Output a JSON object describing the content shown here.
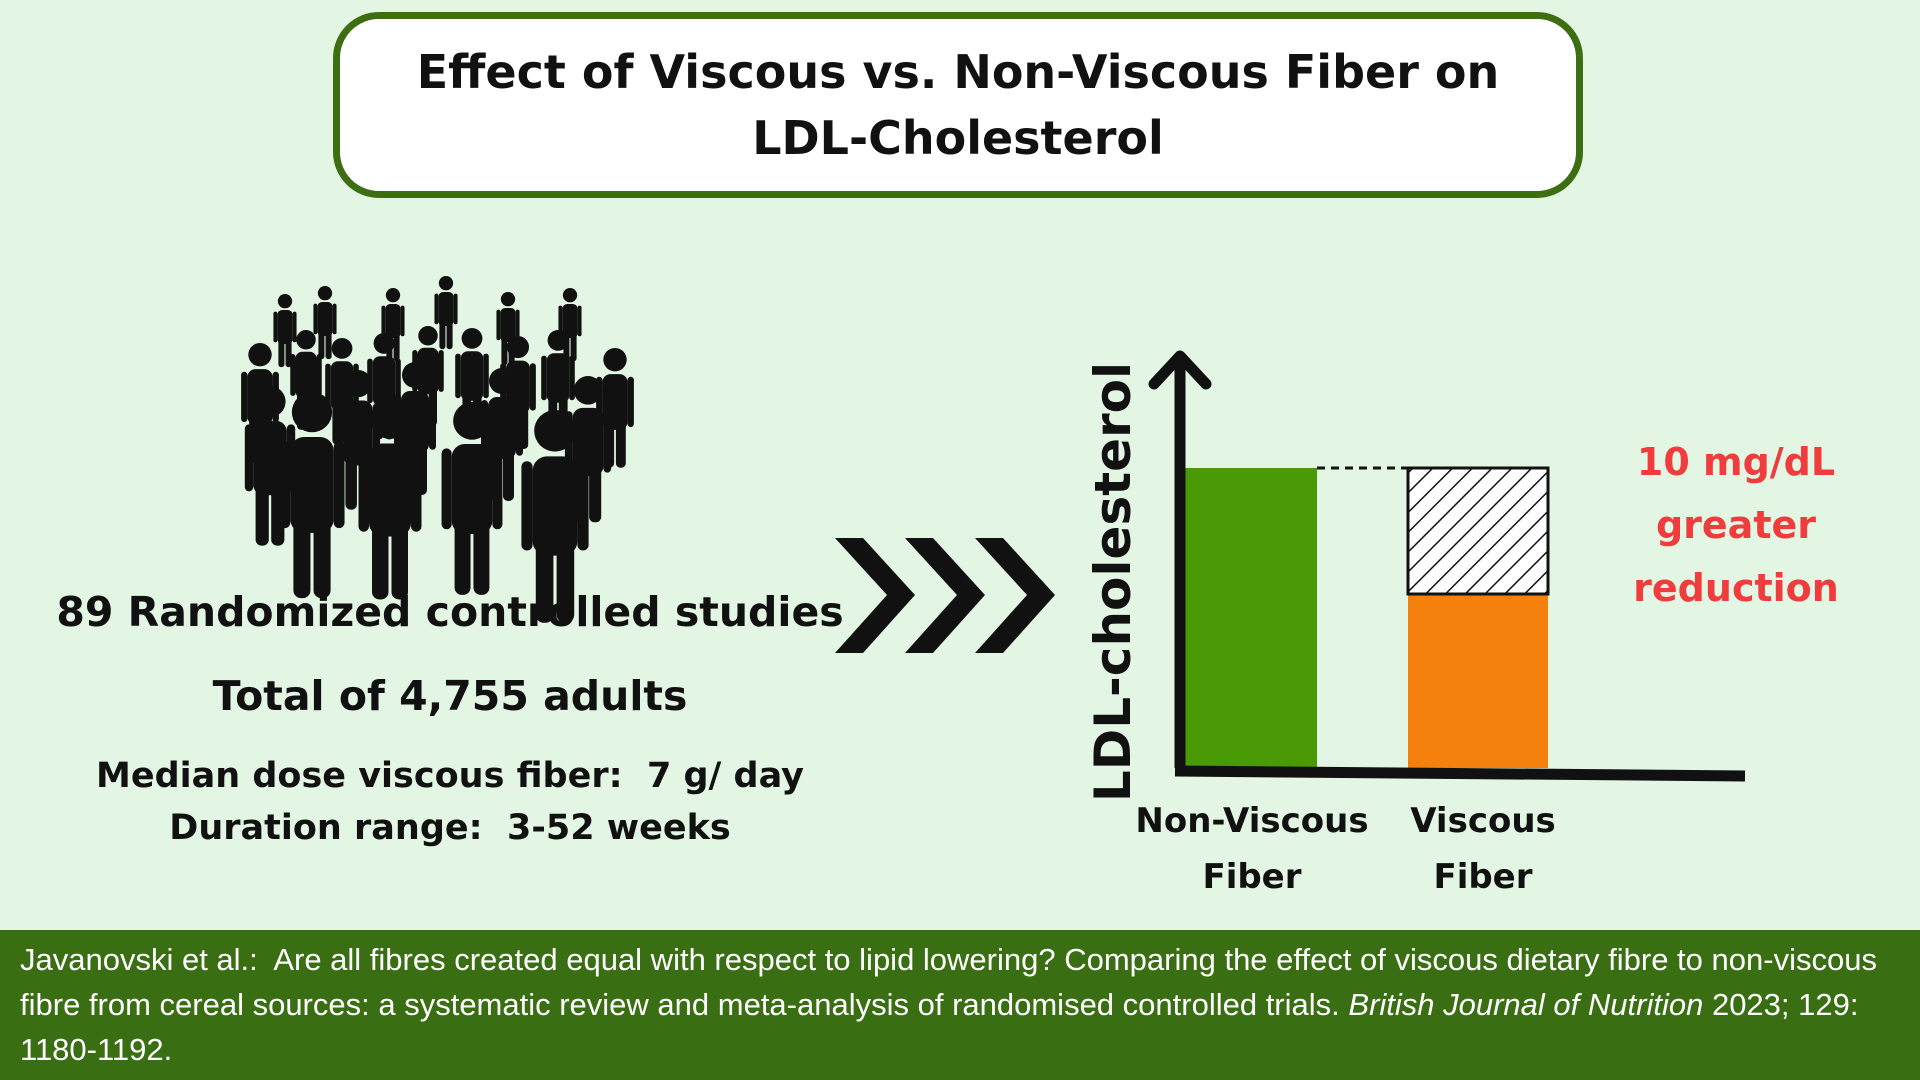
{
  "title": {
    "line1": "Effect of Viscous vs. Non-Viscous Fiber on",
    "line2": "LDL-Cholesterol"
  },
  "icons": {
    "crowd": "crowd-of-people-icon",
    "arrows": "triple-chevron-right-icon"
  },
  "stats": {
    "studies": "89 Randomized controlled studies",
    "participants": "Total of 4,755 adults",
    "dose_label": "Median dose viscous fiber:",
    "dose_value": "7 g/ day",
    "duration_label": "Duration range:",
    "duration_value": "3-52 weeks"
  },
  "colors": {
    "background": "#e3f5e3",
    "title_border": "#3d6e11",
    "non_viscous_bar": "#4a9a05",
    "viscous_bar": "#f5800e",
    "annotation": "#f03c3c",
    "footer_bg": "#3a6e12"
  },
  "chart_data": {
    "type": "bar",
    "ylabel": "LDL-cholesterol",
    "xlabel": "",
    "ylim": [
      0,
      100
    ],
    "categories": [
      {
        "line1": "Non-Viscous",
        "line2": "Fiber"
      },
      {
        "line1": "Viscous",
        "line2": "Fiber"
      }
    ],
    "values": [
      100,
      58
    ],
    "hatched_reduction": {
      "category_index": 1,
      "from": 58,
      "to": 100
    },
    "reference_line": 100,
    "annotation": [
      "10 mg/dL",
      "greater",
      "reduction"
    ]
  },
  "footer": {
    "authors": "Javanovski et al.:",
    "article": "Are all fibres created equal with respect to lipid lowering? Comparing the effect of viscous dietary fibre to non-viscous fibre from cereal sources: a systematic review and meta-analysis of randomised controlled trials.",
    "journal": "British Journal of Nutrition",
    "details": "2023; 129: 1180-1192."
  }
}
